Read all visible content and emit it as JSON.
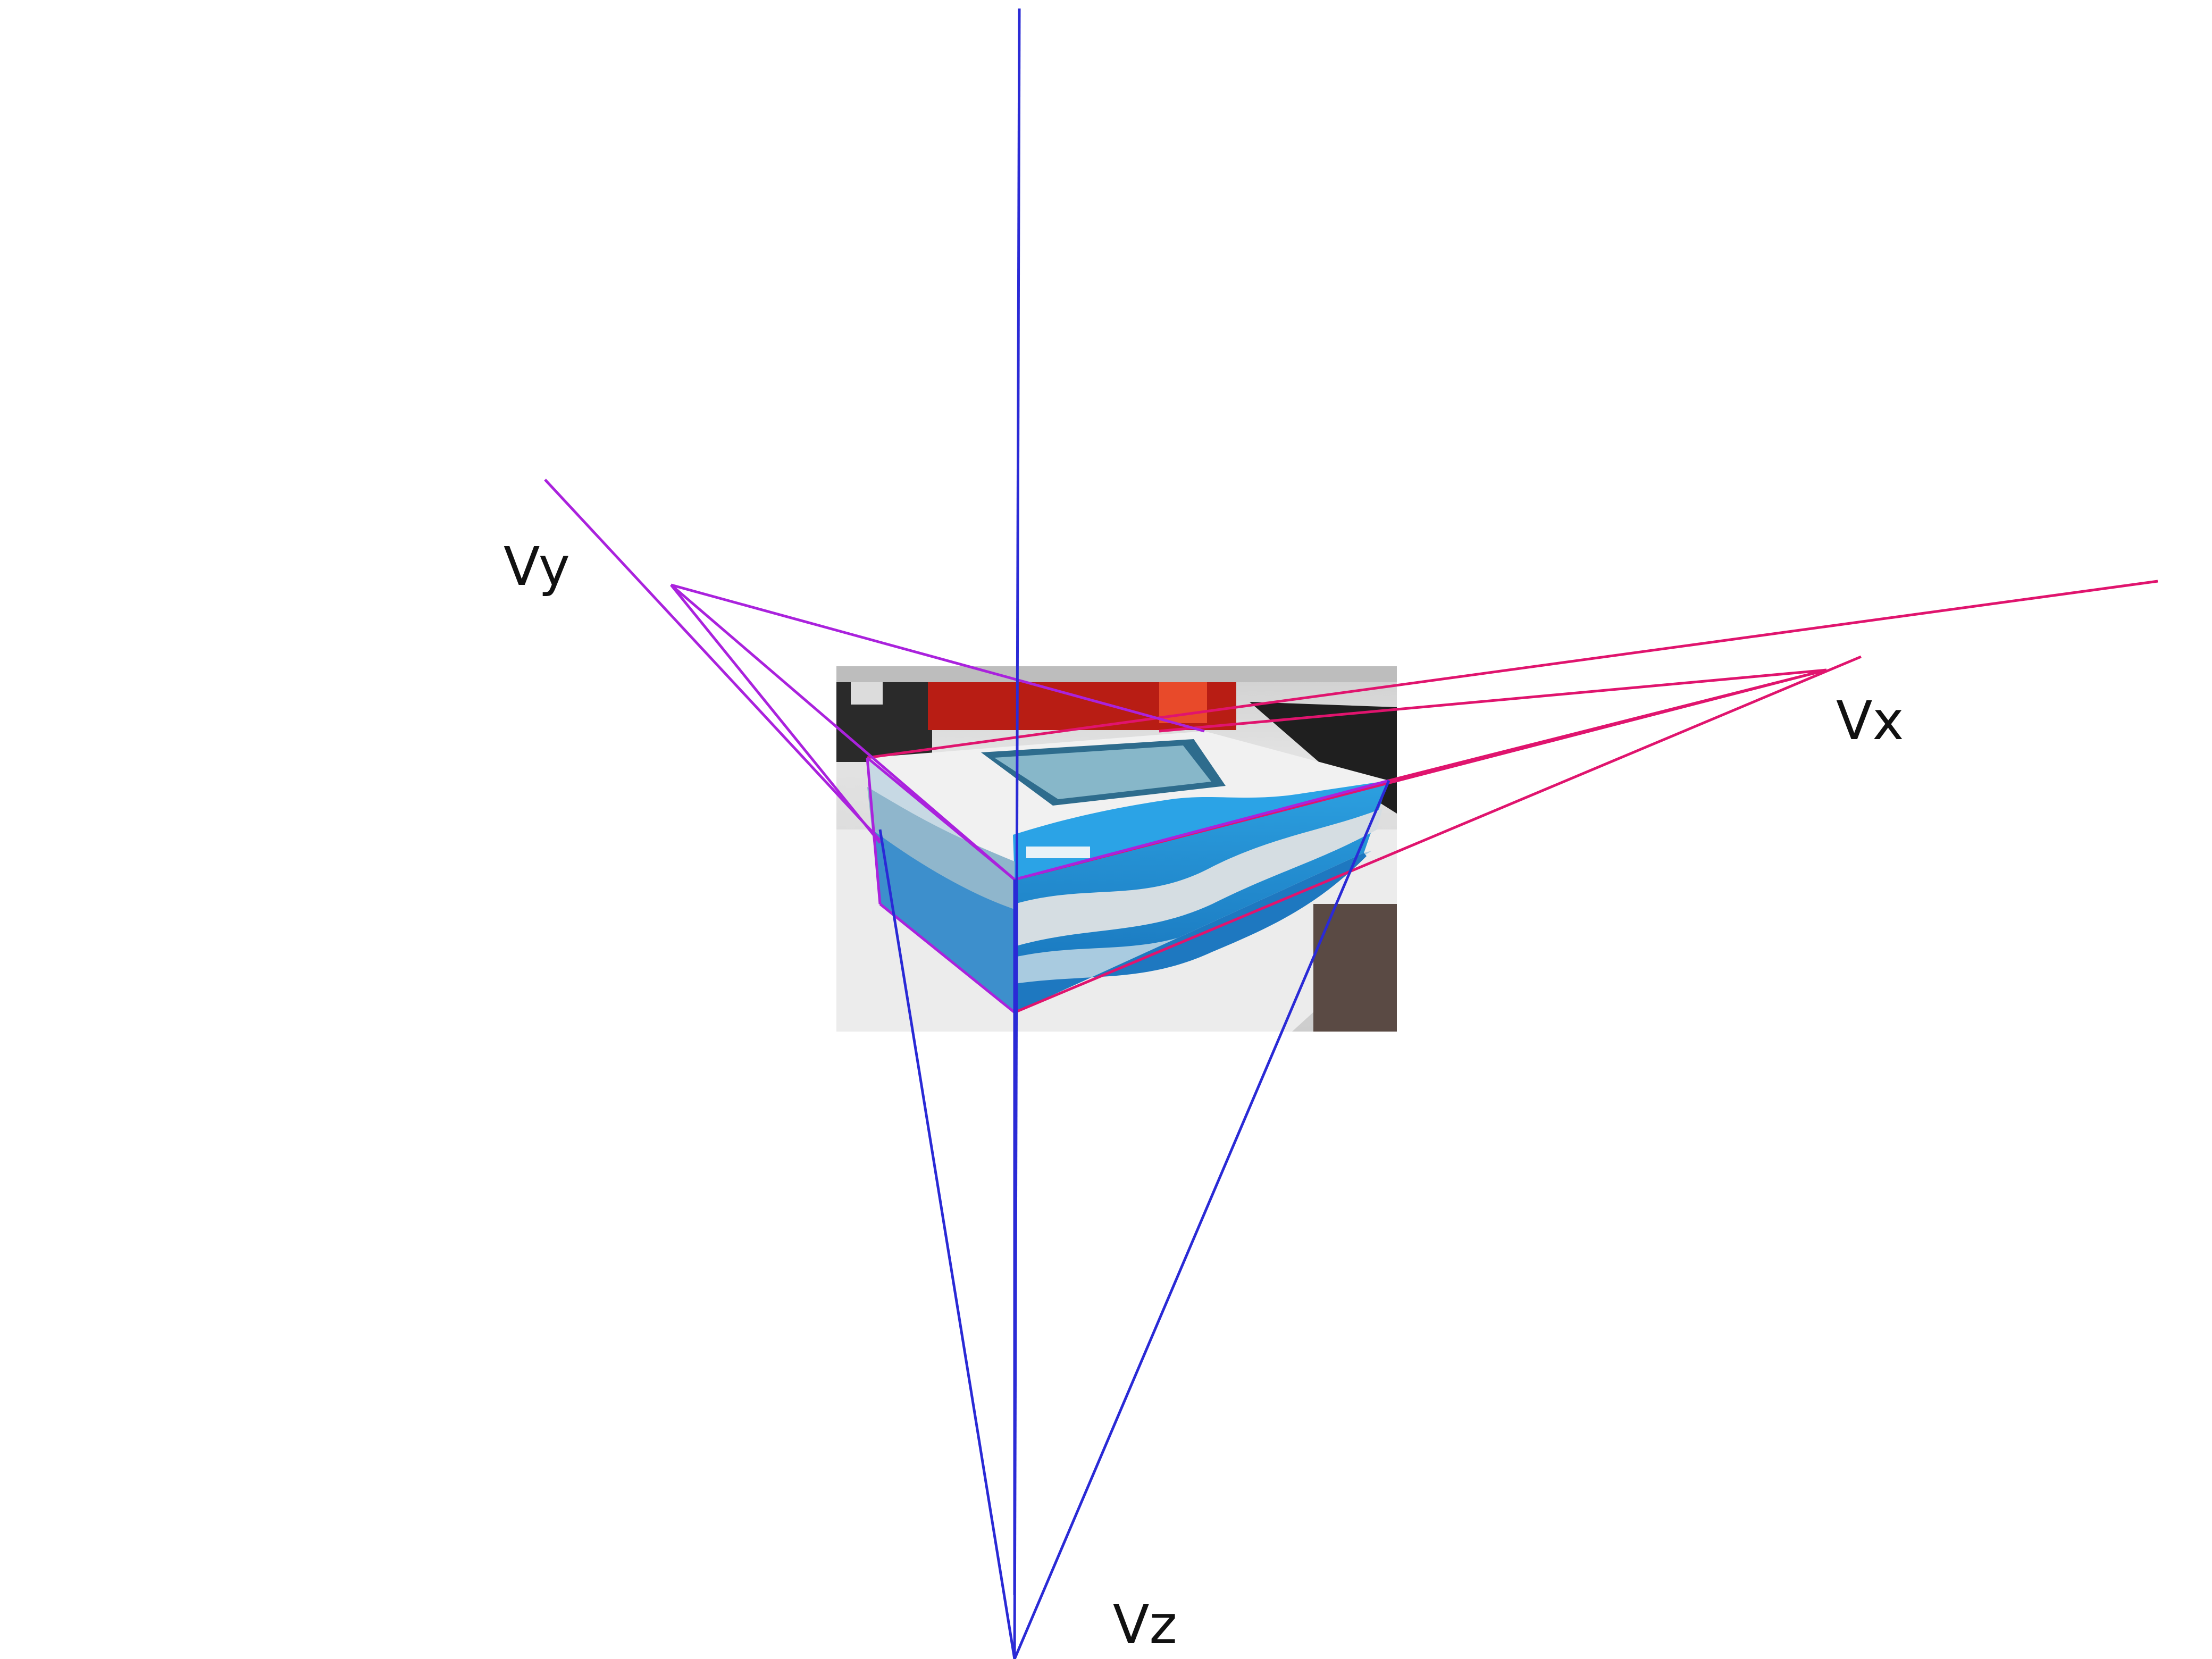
{
  "diagram": {
    "labels": {
      "vx": "Vx",
      "vy": "Vy",
      "vz": "Vz"
    },
    "colors": {
      "x_lines": "#e0146e",
      "y_lines": "#aa22dd",
      "z_lines": "#2a2ad6",
      "box_blue": "#2ba3e6",
      "box_light": "#cfe6f1",
      "box_white": "#f2f2f2",
      "label_text": "#111111",
      "background": "#ffffff"
    }
  }
}
